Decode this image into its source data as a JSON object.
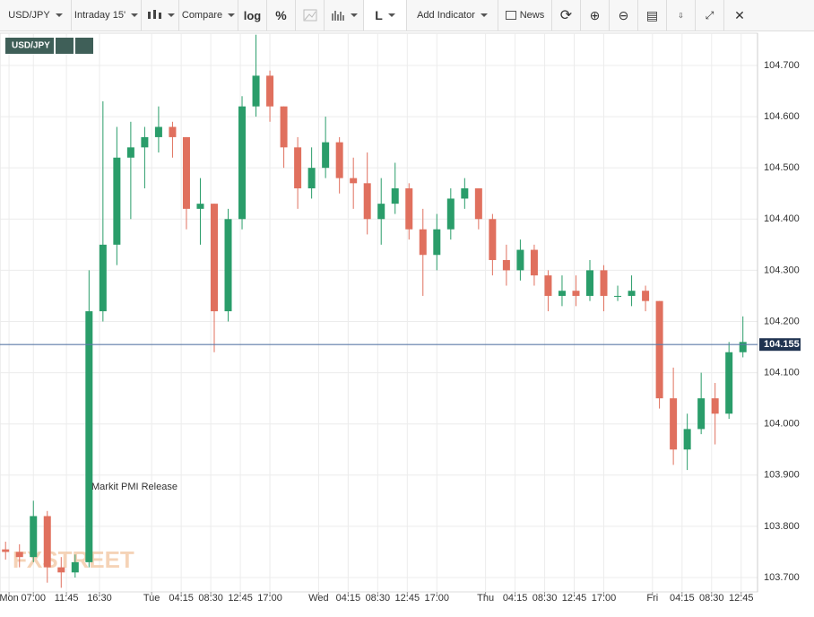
{
  "toolbar": {
    "symbol": "USD/JPY",
    "interval": "Intraday 15'",
    "compare": "Compare",
    "log": "log",
    "percent": "%",
    "line_style": "L",
    "add_indicator": "Add Indicator",
    "news": "News"
  },
  "chart_data": {
    "type": "candlestick",
    "symbol_label": "USD/JPY",
    "watermark": "FXSTREET",
    "annotation": "Markit PMI Release",
    "x": [
      3,
      5,
      7,
      9,
      11,
      13,
      15,
      17,
      19,
      21,
      23,
      25,
      27,
      29,
      31,
      33,
      35,
      37,
      39,
      41,
      43,
      45,
      47,
      49,
      51,
      53,
      55,
      57,
      59,
      61,
      63,
      65,
      67,
      69,
      71,
      73,
      75,
      77,
      79,
      81,
      83,
      85,
      87,
      89,
      91,
      93,
      95,
      97,
      99,
      101,
      103,
      105,
      107,
      109
    ],
    "open": [
      103.755,
      103.75,
      103.74,
      103.82,
      103.72,
      103.71,
      103.73,
      104.22,
      104.35,
      104.52,
      104.54,
      104.56,
      104.58,
      104.56,
      104.42,
      104.43,
      104.22,
      104.4,
      104.62,
      104.68,
      104.62,
      104.54,
      104.46,
      104.5,
      104.55,
      104.48,
      104.47,
      104.4,
      104.43,
      104.46,
      104.38,
      104.33,
      104.38,
      104.44,
      104.46,
      104.4,
      104.32,
      104.3,
      104.34,
      104.29,
      104.25,
      104.26,
      104.25,
      104.3,
      104.25,
      104.25,
      104.26,
      104.24,
      104.05,
      103.95,
      103.99,
      104.05,
      104.02,
      104.14
    ],
    "high": [
      103.77,
      103.765,
      103.85,
      103.83,
      103.74,
      103.745,
      104.3,
      104.63,
      104.58,
      104.59,
      104.58,
      104.62,
      104.59,
      104.56,
      104.48,
      104.43,
      104.42,
      104.64,
      104.76,
      104.69,
      104.62,
      104.56,
      104.54,
      104.6,
      104.56,
      104.52,
      104.53,
      104.48,
      104.51,
      104.47,
      104.42,
      104.41,
      104.46,
      104.48,
      104.46,
      104.41,
      104.35,
      104.36,
      104.35,
      104.3,
      104.29,
      104.29,
      104.32,
      104.31,
      104.27,
      104.29,
      104.27,
      104.24,
      104.11,
      104.02,
      104.1,
      104.08,
      104.16,
      104.21
    ],
    "low": [
      103.735,
      103.72,
      103.73,
      103.69,
      103.68,
      103.7,
      103.72,
      104.2,
      104.31,
      104.4,
      104.46,
      104.53,
      104.52,
      104.38,
      104.35,
      104.14,
      104.2,
      104.38,
      104.6,
      104.59,
      104.5,
      104.42,
      104.44,
      104.48,
      104.45,
      104.42,
      104.37,
      104.35,
      104.41,
      104.36,
      104.25,
      104.3,
      104.36,
      104.42,
      104.38,
      104.29,
      104.27,
      104.28,
      104.27,
      104.22,
      104.23,
      104.23,
      104.24,
      104.22,
      104.24,
      104.23,
      104.22,
      104.03,
      103.92,
      103.91,
      103.98,
      103.96,
      104.01,
      104.13
    ],
    "close": [
      103.75,
      103.74,
      103.82,
      103.72,
      103.71,
      103.73,
      104.22,
      104.35,
      104.52,
      104.54,
      104.56,
      104.58,
      104.56,
      104.42,
      104.43,
      104.22,
      104.4,
      104.62,
      104.68,
      104.62,
      104.54,
      104.46,
      104.5,
      104.55,
      104.48,
      104.47,
      104.4,
      104.43,
      104.46,
      104.38,
      104.33,
      104.38,
      104.44,
      104.46,
      104.4,
      104.32,
      104.3,
      104.34,
      104.29,
      104.25,
      104.26,
      104.25,
      104.3,
      104.25,
      104.25,
      104.26,
      104.24,
      104.05,
      103.95,
      103.99,
      104.05,
      104.02,
      104.14,
      104.16
    ],
    "up_color": "#2a9d6a",
    "down_color": "#e0705e",
    "last_price": 104.155,
    "last_price_color": "#5b7aa8",
    "xlim": [
      2.2,
      111.1
    ],
    "ylim": [
      103.672,
      104.763
    ],
    "xticks": [
      {
        "value": 3.5,
        "label": "Mon"
      },
      {
        "value": 7,
        "label": "07:00"
      },
      {
        "value": 11.75,
        "label": "11:45"
      },
      {
        "value": 16.5,
        "label": "16:30"
      },
      {
        "value": 24,
        "label": "Tue"
      },
      {
        "value": 28.25,
        "label": "04:15"
      },
      {
        "value": 32.5,
        "label": "08:30"
      },
      {
        "value": 36.75,
        "label": "12:45"
      },
      {
        "value": 41,
        "label": "17:00"
      },
      {
        "value": 48,
        "label": "Wed"
      },
      {
        "value": 52.25,
        "label": "04:15"
      },
      {
        "value": 56.5,
        "label": "08:30"
      },
      {
        "value": 60.75,
        "label": "12:45"
      },
      {
        "value": 65,
        "label": "17:00"
      },
      {
        "value": 72,
        "label": "Thu"
      },
      {
        "value": 76.25,
        "label": "04:15"
      },
      {
        "value": 80.5,
        "label": "08:30"
      },
      {
        "value": 84.75,
        "label": "12:45"
      },
      {
        "value": 89,
        "label": "17:00"
      },
      {
        "value": 96,
        "label": "Fri"
      },
      {
        "value": 100.25,
        "label": "04:15"
      },
      {
        "value": 104.5,
        "label": "08:30"
      },
      {
        "value": 108.75,
        "label": "12:45"
      }
    ],
    "yticks": [
      {
        "value": 103.7,
        "label": "103.700"
      },
      {
        "value": 103.8,
        "label": "103.800"
      },
      {
        "value": 103.9,
        "label": "103.900"
      },
      {
        "value": 104.0,
        "label": "104.000"
      },
      {
        "value": 104.1,
        "label": "104.100"
      },
      {
        "value": 104.2,
        "label": "104.200"
      },
      {
        "value": 104.3,
        "label": "104.300"
      },
      {
        "value": 104.4,
        "label": "104.400"
      },
      {
        "value": 104.5,
        "label": "104.500"
      },
      {
        "value": 104.6,
        "label": "104.600"
      },
      {
        "value": 104.7,
        "label": "104.700"
      }
    ],
    "grid": true
  }
}
